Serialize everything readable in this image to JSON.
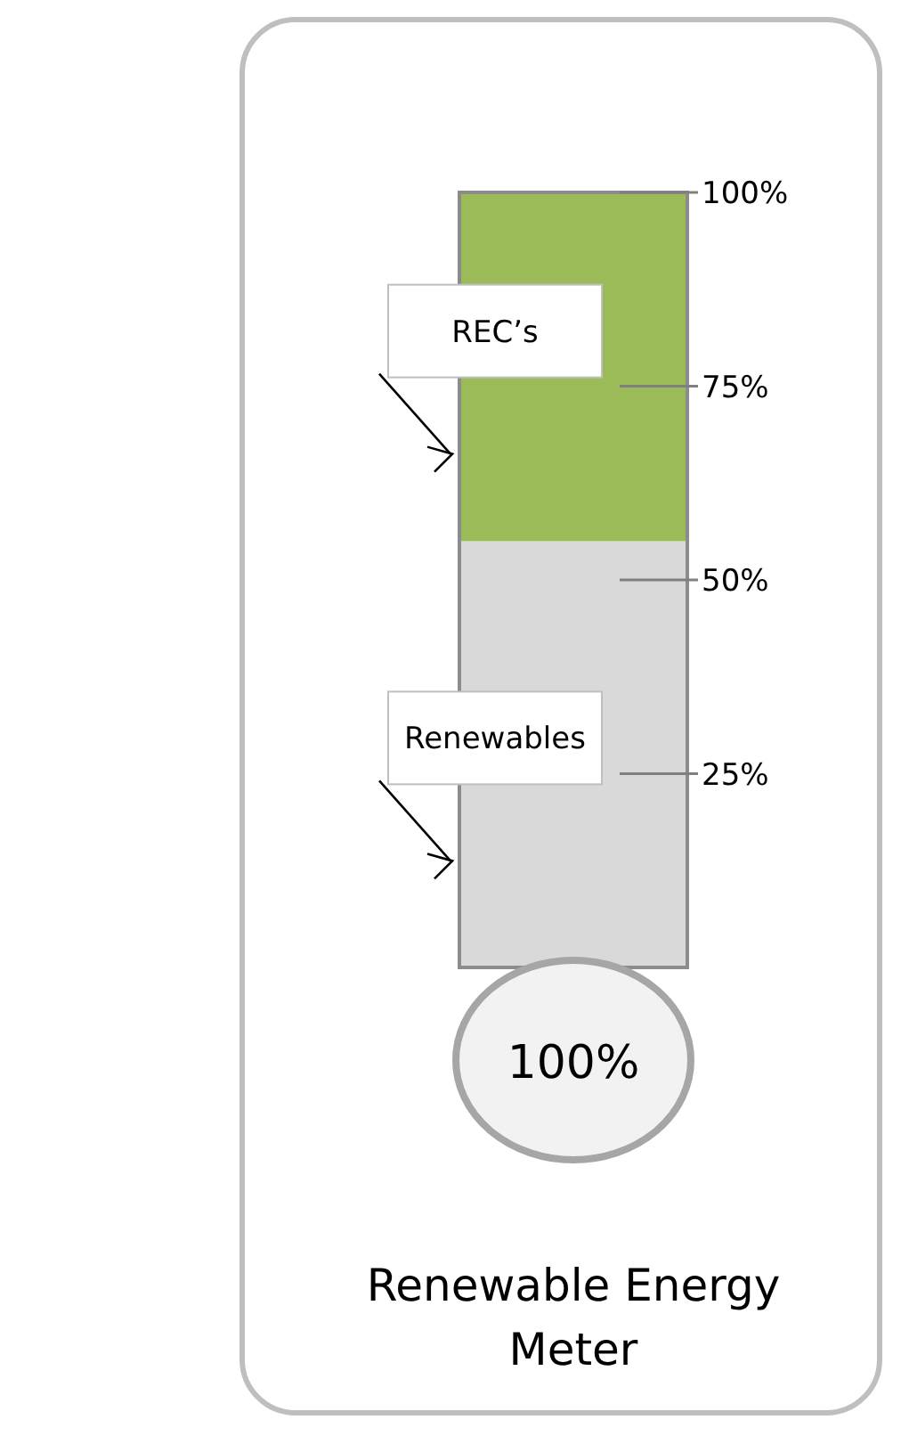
{
  "chart_data": {
    "type": "bar",
    "title": "Renewable Energy Meter",
    "categories": [
      null
    ],
    "stacked": true,
    "series": [
      {
        "name": "Renewables",
        "color": "#d9d9d9",
        "values": [
          55
        ]
      },
      {
        "name": "REC’s",
        "color": "#9bbb59",
        "values": [
          45
        ]
      }
    ],
    "ylim": [
      0,
      100
    ],
    "yticks": [
      {
        "value": 25,
        "label": "25%"
      },
      {
        "value": 50,
        "label": "50%"
      },
      {
        "value": 75,
        "label": "75%"
      },
      {
        "value": 100,
        "label": "100%"
      }
    ],
    "totals": [
      "100%"
    ],
    "legend": false
  }
}
